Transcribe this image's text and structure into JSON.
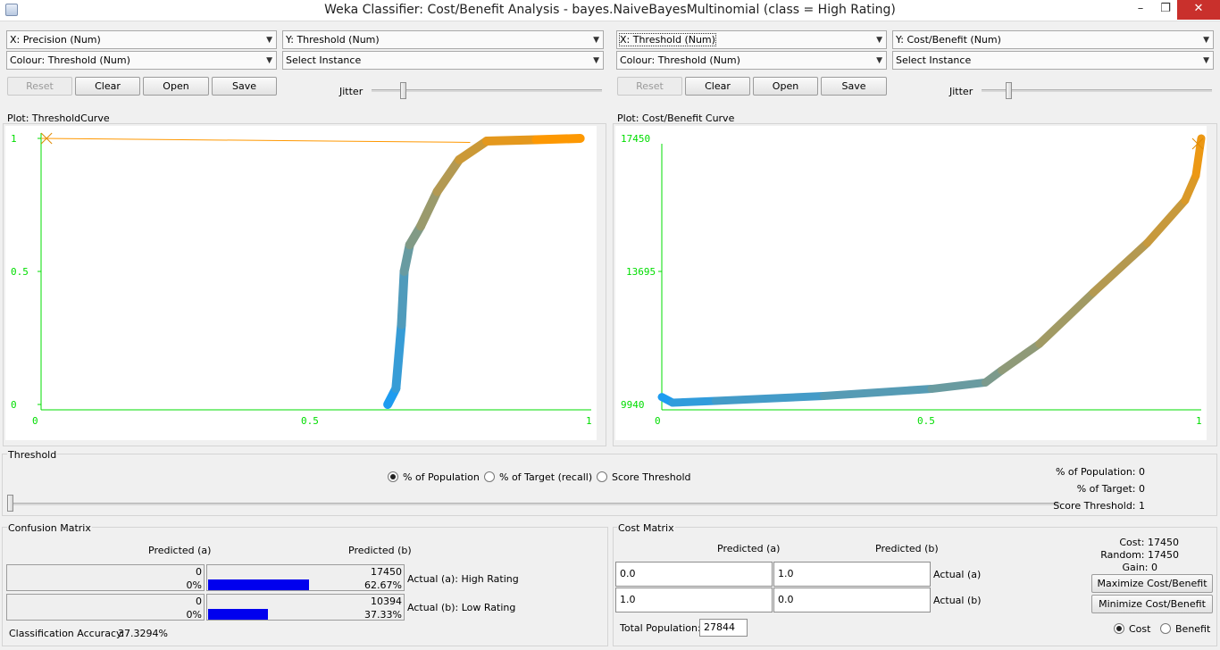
{
  "window": {
    "title": "Weka Classifier: Cost/Benefit Analysis - bayes.NaiveBayesMultinomial  (class = High Rating)",
    "minimize": "–",
    "maximize": "❐",
    "close": "✕"
  },
  "left": {
    "x_axis_select": "X: Precision (Num)",
    "y_axis_select": "Y: Threshold (Num)",
    "colour_select": "Colour: Threshold (Num)",
    "instance_select": "Select Instance",
    "buttons": {
      "reset": "Reset",
      "clear": "Clear",
      "open": "Open",
      "save": "Save"
    },
    "jitter_label": "Jitter",
    "plot_label": "Plot: ThresholdCurve",
    "y_ticks": [
      "1",
      "0.5",
      "0"
    ],
    "x_ticks": [
      "0",
      "0.5",
      "1"
    ]
  },
  "right": {
    "x_axis_select": "X: Threshold (Num)",
    "y_axis_select": "Y: Cost/Benefit (Num)",
    "colour_select": "Colour: Threshold (Num)",
    "instance_select": "Select Instance",
    "buttons": {
      "reset": "Reset",
      "clear": "Clear",
      "open": "Open",
      "save": "Save"
    },
    "jitter_label": "Jitter",
    "plot_label": "Plot: Cost/Benefit Curve",
    "y_ticks": [
      "17450",
      "13695",
      "9940"
    ],
    "x_ticks": [
      "0",
      "0.5",
      "1"
    ]
  },
  "threshold": {
    "label": "Threshold",
    "options": [
      "% of Population",
      "% of Target (recall)",
      "Score Threshold"
    ],
    "selected": "% of Population",
    "slider_value": 0,
    "stats": {
      "population": "% of Population: 0",
      "target": "% of Target: 0",
      "score": "Score Threshold: 1"
    }
  },
  "confusion": {
    "label": "Confusion Matrix",
    "col_a": "Predicted (a)",
    "col_b": "Predicted (b)",
    "rows": [
      {
        "a_count": "0",
        "a_pct": "0%",
        "a_fill": 0,
        "b_count": "17450",
        "b_pct": "62.67%",
        "b_fill": 0.6267,
        "actual": "Actual (a): High Rating"
      },
      {
        "a_count": "0",
        "a_pct": "0%",
        "a_fill": 0,
        "b_count": "10394",
        "b_pct": "37.33%",
        "b_fill": 0.3733,
        "actual": "Actual (b): Low Rating"
      }
    ],
    "accuracy_label": "Classification Accuracy:",
    "accuracy_value": "37.3294%"
  },
  "cost": {
    "label": "Cost Matrix",
    "col_a": "Predicted (a)",
    "col_b": "Predicted (b)",
    "rows": [
      {
        "a": "0.0",
        "b": "1.0",
        "actual": "Actual (a)"
      },
      {
        "a": "1.0",
        "b": "0.0",
        "actual": "Actual (b)"
      }
    ],
    "total_population_label": "Total Population:",
    "total_population_value": "27844",
    "summary": {
      "cost": "Cost: 17450",
      "random": "Random: 17450",
      "gain": "Gain: 0"
    },
    "maximize_button": "Maximize Cost/Benefit",
    "minimize_button": "Minimize Cost/Benefit",
    "mode_options": [
      "Cost",
      "Benefit"
    ],
    "mode_selected": "Cost"
  },
  "colors": {
    "axis": "#00dd00",
    "curve_low": "#1e9cf0",
    "curve_high": "#ff9800",
    "bar": "#0000ee",
    "close_button": "#c9302c"
  }
}
